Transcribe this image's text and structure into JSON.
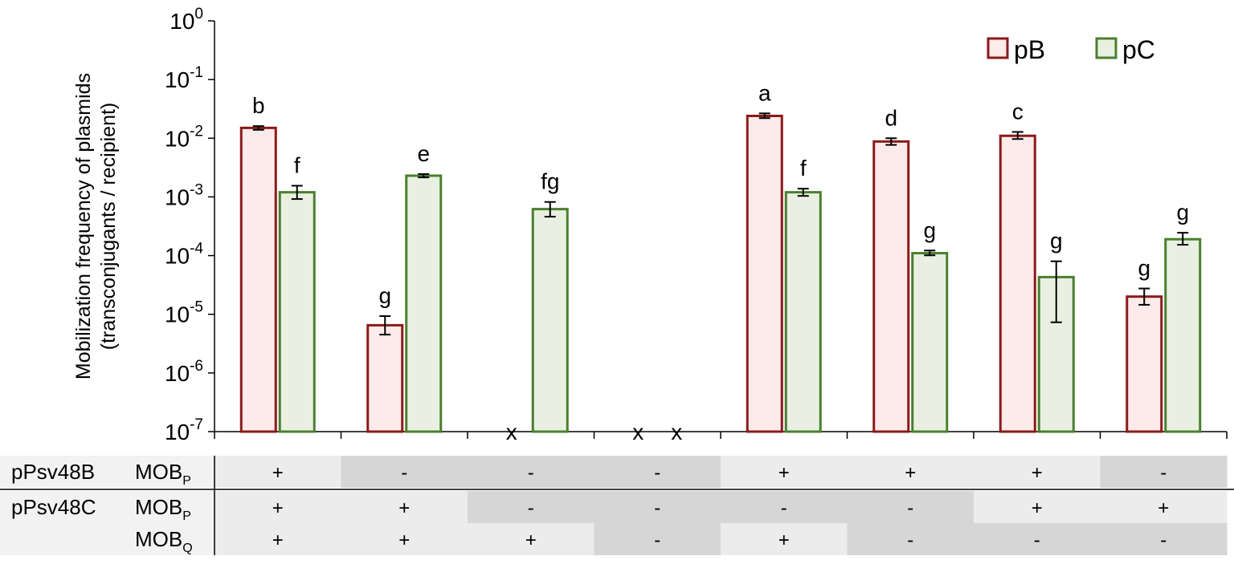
{
  "chart_data": {
    "type": "bar",
    "ylabel_line1": "Mobilization frequency of plasmids",
    "ylabel_line2": "(transconjugants / recipient)",
    "y_scale": "log",
    "ylim": [
      1e-07,
      1
    ],
    "y_ticks": [
      {
        "base": "10",
        "exp": "0",
        "value": 1
      },
      {
        "base": "10",
        "exp": "-1",
        "value": 0.1
      },
      {
        "base": "10",
        "exp": "-2",
        "value": 0.01
      },
      {
        "base": "10",
        "exp": "-3",
        "value": 0.001
      },
      {
        "base": "10",
        "exp": "-4",
        "value": 0.0001
      },
      {
        "base": "10",
        "exp": "-5",
        "value": 1e-05
      },
      {
        "base": "10",
        "exp": "-6",
        "value": 1e-06
      },
      {
        "base": "10",
        "exp": "-7",
        "value": 1e-07
      }
    ],
    "legend_position": "top-right",
    "series": [
      {
        "name": "pB",
        "stroke": "#8b1a1a",
        "fill": "#fdeaea",
        "values": [
          0.015,
          6.5e-06,
          null,
          null,
          0.024,
          0.0088,
          0.011,
          2e-05
        ],
        "err_low": [
          0.0139,
          4.5e-06,
          null,
          null,
          0.022,
          0.0077,
          0.0097,
          1.45e-05
        ],
        "err_high": [
          0.0161,
          9.3e-06,
          null,
          null,
          0.0265,
          0.01,
          0.0128,
          2.75e-05
        ],
        "labels": [
          "b",
          "g",
          "x",
          "x",
          "a",
          "d",
          "c",
          "g"
        ]
      },
      {
        "name": "pC",
        "stroke": "#4a7f2e",
        "fill": "#e9f0e2",
        "values": [
          0.0012,
          0.0023,
          0.00062,
          null,
          0.0012,
          0.00011,
          4.3e-05,
          0.00019
        ],
        "err_low": [
          0.00092,
          0.00215,
          0.00046,
          null,
          0.00104,
          0.000101,
          7.3e-06,
          0.000153
        ],
        "err_high": [
          0.00155,
          0.00245,
          0.00082,
          null,
          0.00138,
          0.000122,
          8e-05,
          0.000245
        ],
        "labels": [
          "f",
          "e",
          "fg",
          "x",
          "f",
          "g",
          "g",
          "g"
        ]
      }
    ]
  },
  "table": {
    "rows": [
      {
        "plasmid": "pPsv48B",
        "mob": "MOB",
        "mob_sub": "P",
        "cells": [
          "+",
          "-",
          "-",
          "-",
          "+",
          "+",
          "+",
          "-"
        ]
      },
      {
        "plasmid": "pPsv48C",
        "mob": "MOB",
        "mob_sub": "P",
        "cells": [
          "+",
          "+",
          "-",
          "-",
          "-",
          "-",
          "+",
          "+"
        ]
      },
      {
        "plasmid": "",
        "mob": "MOB",
        "mob_sub": "Q",
        "cells": [
          "+",
          "+",
          "+",
          "-",
          "+",
          "-",
          "-",
          "-"
        ]
      }
    ],
    "light_cell": "#ececec",
    "dark_cell": "#d6d6d6"
  }
}
